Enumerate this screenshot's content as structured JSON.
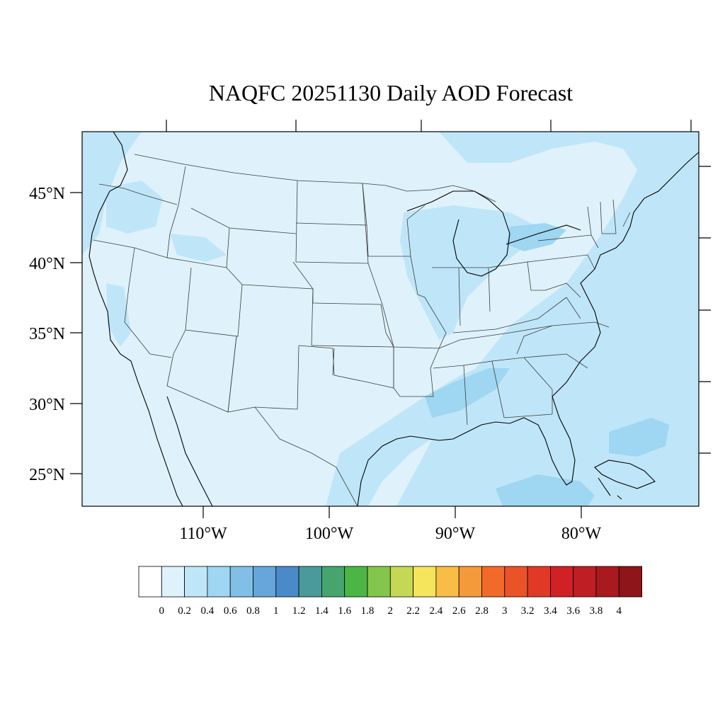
{
  "title": "NAQFC 20251130 Daily AOD Forecast",
  "lat_labels": [
    "45°N",
    "40°N",
    "35°N",
    "30°N",
    "25°N"
  ],
  "lon_labels": [
    "110°W",
    "100°W",
    "90°W",
    "80°W"
  ],
  "colorbar": {
    "labels": [
      "0",
      "0.2",
      "0.4",
      "0.6",
      "0.8",
      "1",
      "1.2",
      "1.4",
      "1.6",
      "1.8",
      "2",
      "2.2",
      "2.4",
      "2.6",
      "2.8",
      "3",
      "3.2",
      "3.4",
      "3.6",
      "3.8",
      "4"
    ],
    "colors": [
      "#ffffff",
      "#dff2fb",
      "#bfe6f8",
      "#9fd6f2",
      "#82bfe6",
      "#66a6da",
      "#4b8ac8",
      "#4a9a9c",
      "#46a56f",
      "#4bb645",
      "#84c64b",
      "#c4d856",
      "#f5e55c",
      "#f8bd47",
      "#f59a3b",
      "#f26a2a",
      "#ea5228",
      "#e03a26",
      "#d22027",
      "#bf1e25",
      "#a81a1f",
      "#8e1519"
    ]
  },
  "colors": {
    "background_aod": "#dff2fb",
    "aod_02_04": "#bfe6f8",
    "aod_04_06": "#9fd6f2"
  }
}
